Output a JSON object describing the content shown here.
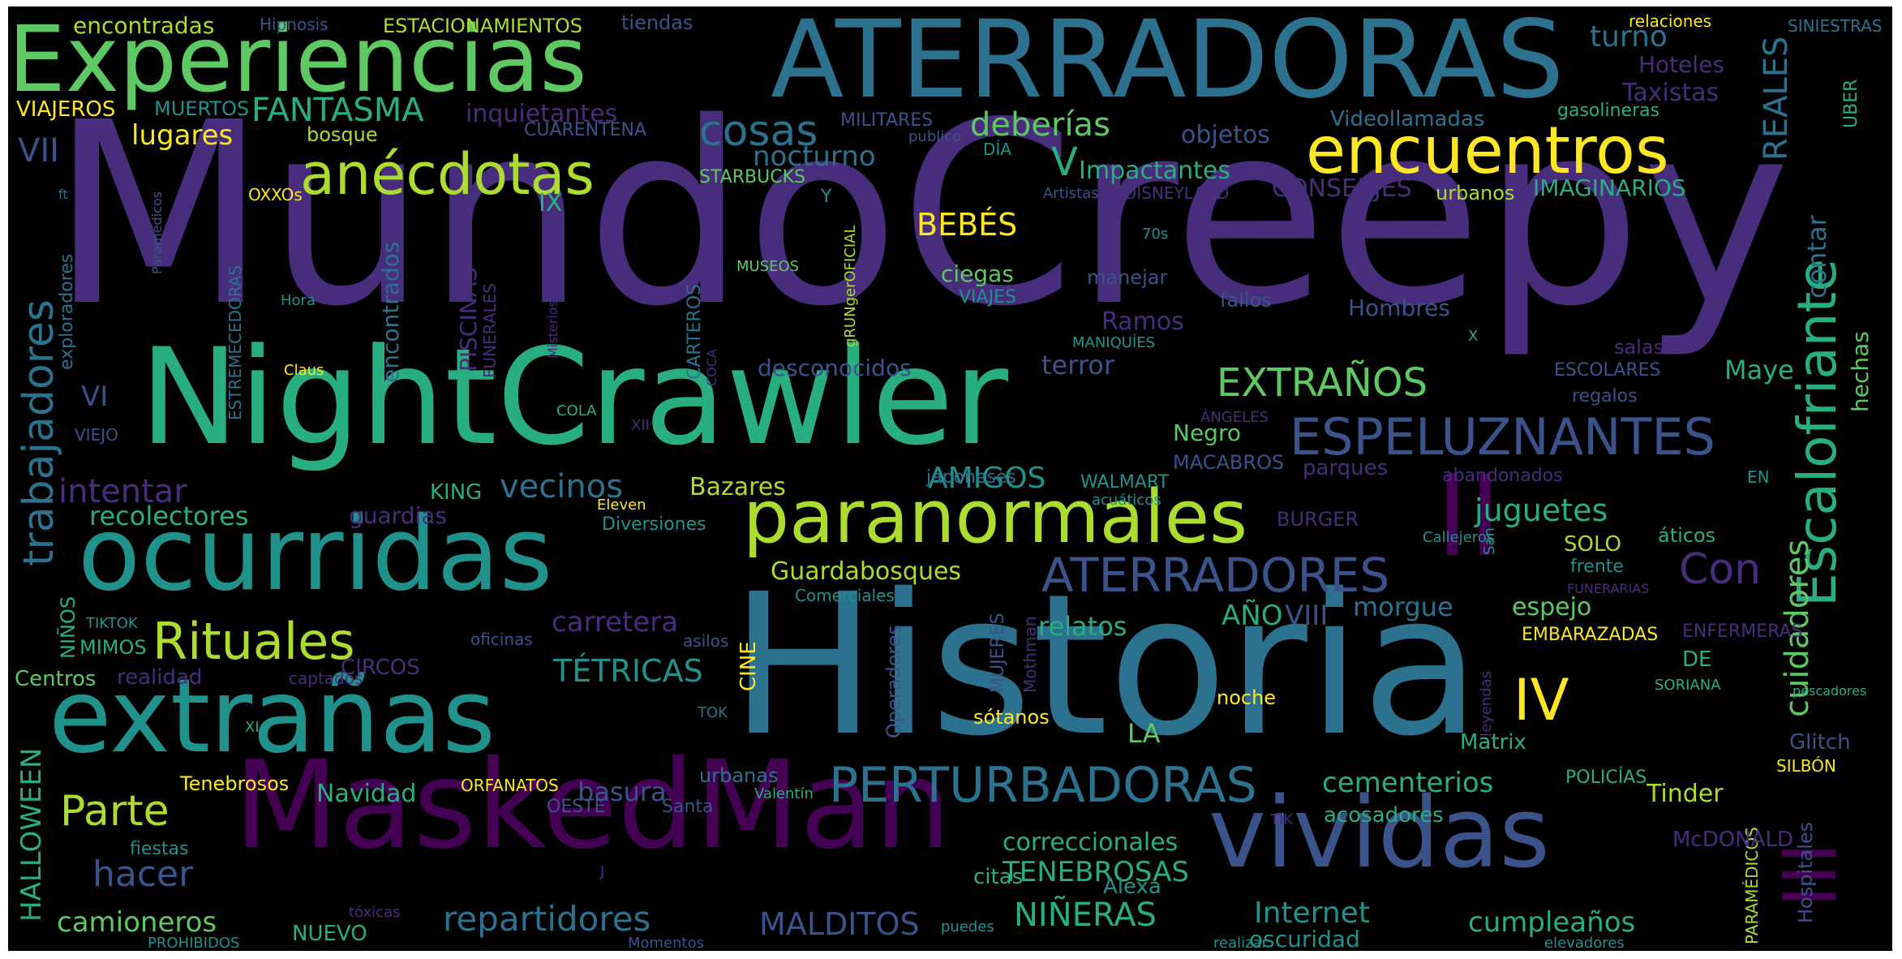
{
  "palette": {
    "purple_dark": "#440154",
    "purple": "#472d7b",
    "indigo": "#3b528b",
    "blue": "#2c728e",
    "teal": "#21918c",
    "green_teal": "#28ae80",
    "green": "#5ec962",
    "lime": "#addc30",
    "yellow": "#fde725"
  },
  "words": [
    {
      "text": "MundoCreepy",
      "color": "purple"
    },
    {
      "text": "Historia",
      "color": "blue"
    },
    {
      "text": "NightCrawler",
      "color": "green_teal"
    },
    {
      "text": "MaskedMan",
      "color": "purple_dark"
    },
    {
      "text": "ATERRADORAS",
      "color": "blue"
    },
    {
      "text": "Experiencias",
      "color": "green"
    },
    {
      "text": "ocurridas",
      "color": "teal"
    },
    {
      "text": "extrañas",
      "color": "teal"
    },
    {
      "text": "vividas",
      "color": "indigo"
    },
    {
      "text": "paranormales",
      "color": "lime"
    },
    {
      "text": "encuentros",
      "color": "yellow"
    },
    {
      "text": "II",
      "color": "purple_dark"
    },
    {
      "text": "III",
      "color": "purple_dark"
    },
    {
      "text": "Escalofriante",
      "color": "green_teal"
    },
    {
      "text": "anécdotas",
      "color": "lime"
    },
    {
      "text": "ESPELUZNANTES",
      "color": "indigo"
    },
    {
      "text": "ATERRADORES",
      "color": "indigo"
    },
    {
      "text": "PERTURBADORAS",
      "color": "blue"
    },
    {
      "text": "Rituales",
      "color": "lime"
    },
    {
      "text": "Parte",
      "color": "lime"
    },
    {
      "text": "trabajadores",
      "color": "blue"
    },
    {
      "text": "cosas",
      "color": "blue"
    },
    {
      "text": "IV",
      "color": "yellow"
    },
    {
      "text": "V",
      "color": "green_teal"
    },
    {
      "text": "EXTRAÑOS",
      "color": "green"
    },
    {
      "text": "Con",
      "color": "purple"
    },
    {
      "text": "FANTASMA",
      "color": "green_teal"
    },
    {
      "text": "deberías",
      "color": "green"
    },
    {
      "text": "nocturno",
      "color": "blue"
    },
    {
      "text": "inquietantes",
      "color": "purple"
    },
    {
      "text": "turno",
      "color": "blue"
    },
    {
      "text": "Hoteles",
      "color": "purple"
    },
    {
      "text": "Taxistas",
      "color": "purple"
    },
    {
      "text": "REALES",
      "color": "blue"
    },
    {
      "text": "contar",
      "color": "blue"
    },
    {
      "text": "cuidadores",
      "color": "green"
    },
    {
      "text": "hechas",
      "color": "green"
    },
    {
      "text": "UBER",
      "color": "green_teal"
    },
    {
      "text": "gasolineras",
      "color": "green_teal"
    },
    {
      "text": "Videollamadas",
      "color": "blue"
    },
    {
      "text": "objetos",
      "color": "indigo"
    },
    {
      "text": "Impactantes",
      "color": "green_teal"
    },
    {
      "text": "CONSERJES",
      "color": "purple"
    },
    {
      "text": "IMAGINARIOS",
      "color": "green_teal"
    },
    {
      "text": "urbanos",
      "color": "lime"
    },
    {
      "text": "DISNEYLAND",
      "color": "purple"
    },
    {
      "text": "BEBÉS",
      "color": "yellow"
    },
    {
      "text": "ciegas",
      "color": "green"
    },
    {
      "text": "VIAJES",
      "color": "teal"
    },
    {
      "text": "manejar",
      "color": "indigo"
    },
    {
      "text": "Ramos",
      "color": "purple"
    },
    {
      "text": "fallos",
      "color": "indigo"
    },
    {
      "text": "Hombres",
      "color": "indigo"
    },
    {
      "text": "terror",
      "color": "indigo"
    },
    {
      "text": "Maye",
      "color": "green_teal"
    },
    {
      "text": "desconocidos",
      "color": "indigo"
    },
    {
      "text": "MANIQUÍES",
      "color": "teal"
    },
    {
      "text": "salas",
      "color": "purple"
    },
    {
      "text": "ESCOLARES",
      "color": "indigo"
    },
    {
      "text": "regalos",
      "color": "indigo"
    },
    {
      "text": "Negro",
      "color": "green"
    },
    {
      "text": "MACABROS",
      "color": "indigo"
    },
    {
      "text": "ÁNGELES",
      "color": "purple"
    },
    {
      "text": "parques",
      "color": "purple"
    },
    {
      "text": "abandonados",
      "color": "purple"
    },
    {
      "text": "EN",
      "color": "teal"
    },
    {
      "text": "AMIGOS",
      "color": "teal"
    },
    {
      "text": "vecinos",
      "color": "blue"
    },
    {
      "text": "KING",
      "color": "green_teal"
    },
    {
      "text": "Bazares",
      "color": "lime"
    },
    {
      "text": "japoneses",
      "color": "blue"
    },
    {
      "text": "WALMART",
      "color": "teal"
    },
    {
      "text": "acuáticos",
      "color": "teal"
    },
    {
      "text": "juguetes",
      "color": "green_teal"
    },
    {
      "text": "áticos",
      "color": "green_teal"
    },
    {
      "text": "BURGER",
      "color": "purple"
    },
    {
      "text": "SOLO",
      "color": "lime"
    },
    {
      "text": "frente",
      "color": "teal"
    },
    {
      "text": "Callejeros",
      "color": "teal"
    },
    {
      "text": "San",
      "color": "teal"
    },
    {
      "text": "FUNERARIAS",
      "color": "purple"
    },
    {
      "text": "Guardabosques",
      "color": "lime"
    },
    {
      "text": "Comerciales",
      "color": "teal"
    },
    {
      "text": "morgue",
      "color": "blue"
    },
    {
      "text": "espejo",
      "color": "green"
    },
    {
      "text": "AÑO",
      "color": "green_teal"
    },
    {
      "text": "VIII",
      "color": "indigo"
    },
    {
      "text": "relatos",
      "color": "green_teal"
    },
    {
      "text": "carretera",
      "color": "purple"
    },
    {
      "text": "EMBARAZADAS",
      "color": "yellow"
    },
    {
      "text": "ENFERMERAS",
      "color": "purple"
    },
    {
      "text": "DE",
      "color": "green_teal"
    },
    {
      "text": "TÉTRICAS",
      "color": "teal"
    },
    {
      "text": "SORIANA",
      "color": "green_teal"
    },
    {
      "text": "pescadores",
      "color": "green_teal"
    },
    {
      "text": "recolectores",
      "color": "green_teal"
    },
    {
      "text": "intentar",
      "color": "purple"
    },
    {
      "text": "guardias",
      "color": "purple"
    },
    {
      "text": "Diversiones",
      "color": "teal"
    },
    {
      "text": "Eleven",
      "color": "yellow"
    },
    {
      "text": "XII",
      "color": "purple"
    },
    {
      "text": "COLA",
      "color": "green_teal"
    },
    {
      "text": "COCA",
      "color": "purple"
    },
    {
      "text": "VI",
      "color": "indigo"
    },
    {
      "text": "VIEJO",
      "color": "indigo"
    },
    {
      "text": "VII",
      "color": "indigo"
    },
    {
      "text": "lugares",
      "color": "yellow"
    },
    {
      "text": "bosque",
      "color": "lime"
    },
    {
      "text": "VIAJEROS",
      "color": "yellow"
    },
    {
      "text": "MUERTOS",
      "color": "teal"
    },
    {
      "text": "encontradas",
      "color": "lime"
    },
    {
      "text": "Hipnosis",
      "color": "indigo"
    },
    {
      "text": "ESTACIONAMIENTOS",
      "color": "lime"
    },
    {
      "text": "tiendas",
      "color": "indigo"
    },
    {
      "text": "relaciones",
      "color": "yellow"
    },
    {
      "text": "SINIESTRAS",
      "color": "blue"
    },
    {
      "text": "CUARENTENA",
      "color": "indigo"
    },
    {
      "text": "MILITARES",
      "color": "indigo"
    },
    {
      "text": "DÍA",
      "color": "teal"
    },
    {
      "text": "publico",
      "color": "indigo"
    },
    {
      "text": "STARBUCKS",
      "color": "green"
    },
    {
      "text": "Artistas",
      "color": "indigo"
    },
    {
      "text": "70s",
      "color": "teal"
    },
    {
      "text": "IX",
      "color": "green_teal"
    },
    {
      "text": "Y",
      "color": "teal"
    },
    {
      "text": "OXXOs",
      "color": "yellow"
    },
    {
      "text": "gRUNgerOFICIAL",
      "color": "lime"
    },
    {
      "text": "MUSEOS",
      "color": "green"
    },
    {
      "text": "Hora",
      "color": "teal"
    },
    {
      "text": "Claus",
      "color": "yellow"
    },
    {
      "text": "X",
      "color": "green_teal"
    },
    {
      "text": "ft",
      "color": "blue"
    },
    {
      "text": "Paramedicos",
      "color": "indigo"
    },
    {
      "text": "exploradores",
      "color": "blue"
    },
    {
      "text": "ESTREMECEDORAS",
      "color": "blue"
    },
    {
      "text": "encontrados",
      "color": "blue"
    },
    {
      "text": "PISCINAS",
      "color": "purple"
    },
    {
      "text": "FUNERALES",
      "color": "purple"
    },
    {
      "text": "Misteriosas",
      "color": "purple"
    },
    {
      "text": "CARTEROS",
      "color": "blue"
    },
    {
      "text": "HALLOWEEN",
      "color": "green_teal"
    },
    {
      "text": "NIÑOS",
      "color": "green_teal"
    },
    {
      "text": "TIKTOK",
      "color": "teal"
    },
    {
      "text": "MIMOS",
      "color": "green_teal"
    },
    {
      "text": "Centros",
      "color": "green"
    },
    {
      "text": "realidad",
      "color": "purple"
    },
    {
      "text": "captados",
      "color": "purple"
    },
    {
      "text": "CIRCOS",
      "color": "purple"
    },
    {
      "text": "oficinas",
      "color": "indigo"
    },
    {
      "text": "asilos",
      "color": "indigo"
    },
    {
      "text": "CINE",
      "color": "yellow"
    },
    {
      "text": "XI",
      "color": "green_teal"
    },
    {
      "text": "TOK",
      "color": "blue"
    },
    {
      "text": "Tenebrosos",
      "color": "yellow"
    },
    {
      "text": "ORFANATOS",
      "color": "yellow"
    },
    {
      "text": "Navidad",
      "color": "green_teal"
    },
    {
      "text": "basura",
      "color": "indigo"
    },
    {
      "text": "urbanas",
      "color": "blue"
    },
    {
      "text": "Valentín",
      "color": "green_teal"
    },
    {
      "text": "OESTE",
      "color": "indigo"
    },
    {
      "text": "Santa",
      "color": "indigo"
    },
    {
      "text": "LA",
      "color": "green"
    },
    {
      "text": "Operadores",
      "color": "indigo"
    },
    {
      "text": "MUJERES",
      "color": "indigo"
    },
    {
      "text": "Mothman",
      "color": "purple"
    },
    {
      "text": "sótanos",
      "color": "yellow"
    },
    {
      "text": "noche",
      "color": "yellow"
    },
    {
      "text": "leyendas",
      "color": "purple"
    },
    {
      "text": "Matrix",
      "color": "green_teal"
    },
    {
      "text": "cementerios",
      "color": "green_teal"
    },
    {
      "text": "POLICÍAS",
      "color": "green_teal"
    },
    {
      "text": "Tinder",
      "color": "lime"
    },
    {
      "text": "Glitch",
      "color": "indigo"
    },
    {
      "text": "SILBÓN",
      "color": "yellow"
    },
    {
      "text": "PARAMÉDICOS",
      "color": "lime"
    },
    {
      "text": "Hospitales",
      "color": "indigo"
    },
    {
      "text": "McDONALD",
      "color": "purple"
    },
    {
      "text": "acosadores",
      "color": "green_teal"
    },
    {
      "text": "TIK",
      "color": "purple"
    },
    {
      "text": "correccionales",
      "color": "green_teal"
    },
    {
      "text": "TENEBROSAS",
      "color": "green_teal"
    },
    {
      "text": "citas",
      "color": "green_teal"
    },
    {
      "text": "Alexa",
      "color": "teal"
    },
    {
      "text": "Internet",
      "color": "teal"
    },
    {
      "text": "NIÑERAS",
      "color": "green_teal"
    },
    {
      "text": "cumpleaños",
      "color": "green_teal"
    },
    {
      "text": "oscuridad",
      "color": "teal"
    },
    {
      "text": "hacer",
      "color": "indigo"
    },
    {
      "text": "camioneros",
      "color": "green"
    },
    {
      "text": "repartidores",
      "color": "blue"
    },
    {
      "text": "MALDITOS",
      "color": "indigo"
    },
    {
      "text": "fiestas",
      "color": "teal"
    },
    {
      "text": "tóxicas",
      "color": "purple"
    },
    {
      "text": "NUEVO",
      "color": "green_teal"
    },
    {
      "text": "PROHIBIDOS",
      "color": "teal"
    },
    {
      "text": "puedes",
      "color": "teal"
    },
    {
      "text": "Momentos",
      "color": "indigo"
    },
    {
      "text": "realizar",
      "color": "teal"
    },
    {
      "text": "elevadores",
      "color": "teal"
    },
    {
      "text": "J",
      "color": "purple"
    }
  ]
}
